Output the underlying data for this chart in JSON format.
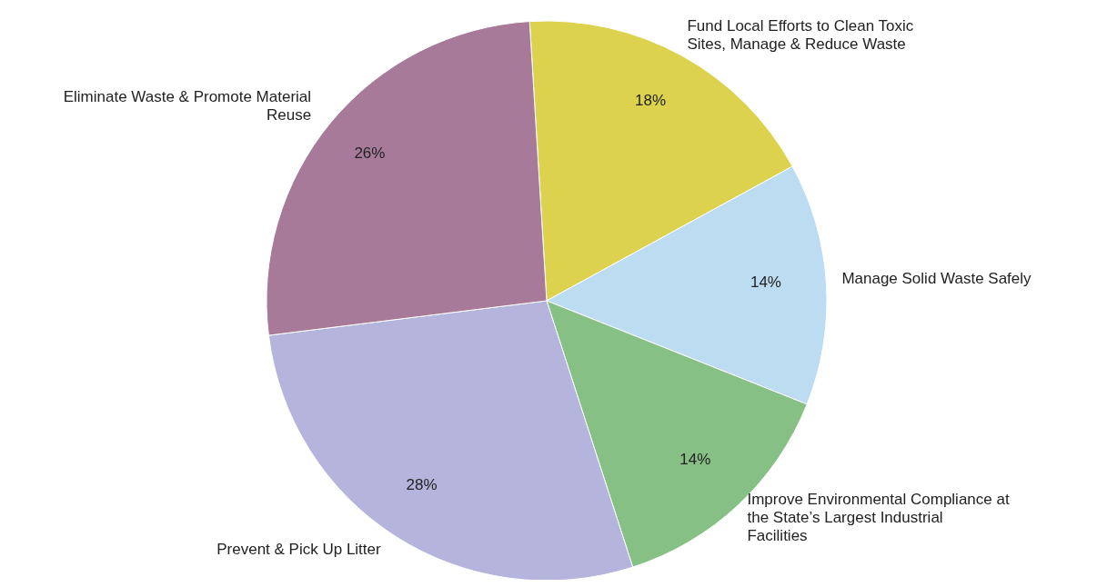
{
  "chart_data": {
    "type": "pie",
    "categories": [
      "Fund Local Efforts to Clean Toxic Sites, Manage & Reduce Waste",
      "Manage Solid Waste Safely",
      "Improve Environmental Compliance at the State’s Largest Industrial Facilities",
      "Prevent & Pick Up Litter",
      "Eliminate Waste & Promote Material Reuse"
    ],
    "values": [
      18,
      14,
      14,
      28,
      26
    ],
    "colors": [
      "#dcd24e",
      "#bcdcf2",
      "#86c084",
      "#b4b4dc",
      "#a67a98"
    ],
    "value_labels": [
      "18%",
      "14%",
      "14%",
      "28%",
      "26%"
    ]
  }
}
